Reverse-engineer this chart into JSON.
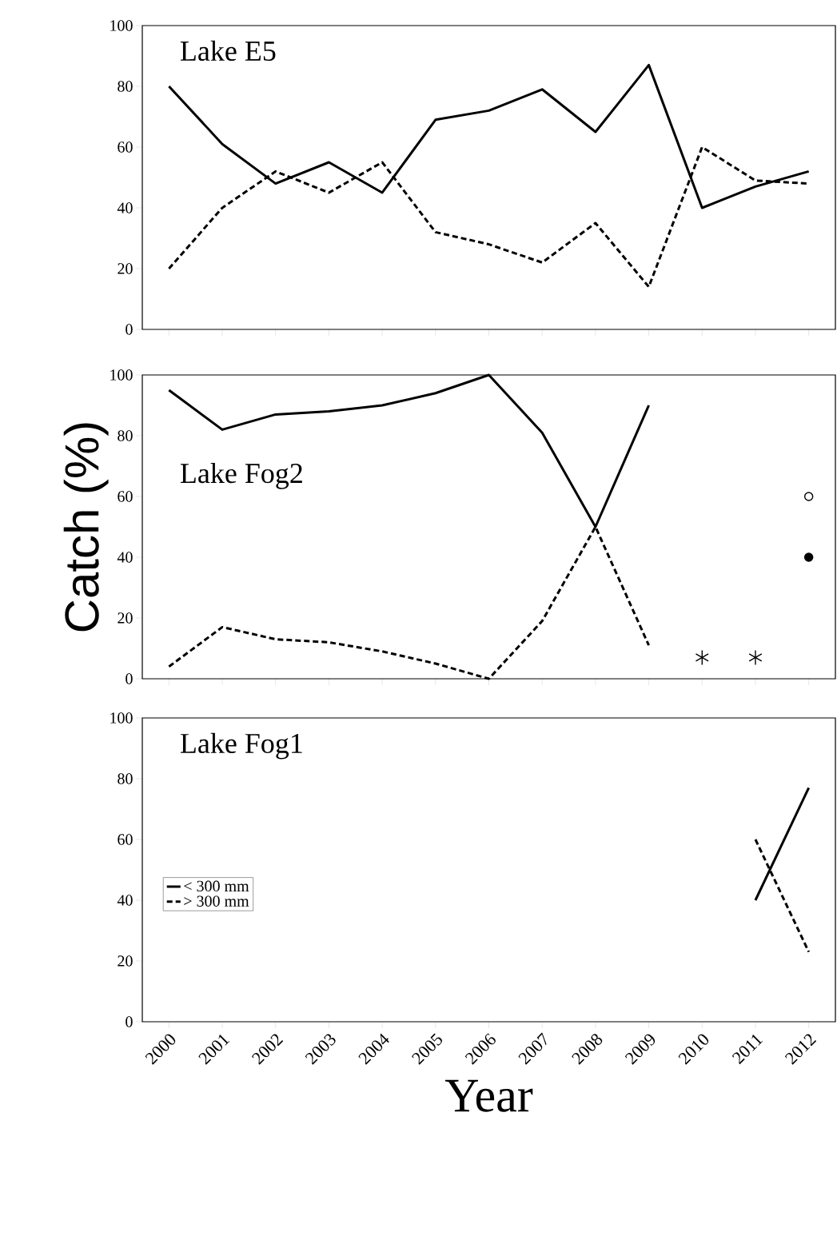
{
  "chart_data": [
    {
      "type": "line",
      "title": "Lake E5",
      "categories": [
        "2000",
        "2001",
        "2002",
        "2003",
        "2004",
        "2005",
        "2006",
        "2007",
        "2008",
        "2009",
        "2010",
        "2011",
        "2012"
      ],
      "ylim": [
        0,
        100
      ],
      "yticks": [
        0,
        20,
        40,
        60,
        80,
        100
      ],
      "tick_labels": "y",
      "grid": false,
      "legend": false,
      "series": [
        {
          "color": "#000000",
          "line_style": "solid",
          "values": [
            80,
            61,
            48,
            55,
            45,
            69,
            72,
            79,
            65,
            87,
            40,
            47,
            52
          ]
        },
        {
          "color": "#000000",
          "line_style": "dashed",
          "values": [
            20,
            40,
            52,
            45,
            55,
            32,
            28,
            22,
            35,
            14,
            60,
            49,
            48
          ]
        }
      ]
    },
    {
      "type": "line",
      "title": "Lake Fog2",
      "ylabel": "Catch (%)",
      "categories": [
        "2000",
        "2001",
        "2002",
        "2003",
        "2004",
        "2005",
        "2006",
        "2007",
        "2008",
        "2009",
        "2010",
        "2011",
        "2012"
      ],
      "ylim": [
        0,
        100
      ],
      "yticks": [
        0,
        20,
        40,
        60,
        80,
        100
      ],
      "tick_labels": "y",
      "grid": false,
      "legend": false,
      "series": [
        {
          "color": "#000000",
          "line_style": "solid",
          "values": [
            95,
            82,
            87,
            88,
            90,
            94,
            100,
            81,
            50,
            90,
            null,
            null,
            null
          ]
        },
        {
          "color": "#000000",
          "line_style": "dashed",
          "values": [
            4,
            17,
            13,
            12,
            9,
            5,
            0,
            19,
            50,
            11,
            null,
            null,
            null
          ]
        },
        {
          "type": "scatter",
          "marker": "circle",
          "color": "#ffffff",
          "values": [
            null,
            null,
            null,
            null,
            null,
            null,
            null,
            null,
            null,
            null,
            null,
            null,
            60
          ]
        },
        {
          "type": "scatter",
          "marker": "circle",
          "color": "#000000",
          "values": [
            null,
            null,
            null,
            null,
            null,
            null,
            null,
            null,
            null,
            null,
            null,
            null,
            40
          ]
        },
        {
          "type": "scatter",
          "marker": "cross",
          "color": "#000000",
          "values": [
            null,
            null,
            null,
            null,
            null,
            null,
            null,
            null,
            null,
            null,
            7,
            7,
            null
          ]
        }
      ]
    },
    {
      "type": "line",
      "title": "Lake Fog1",
      "xlabel": "Year",
      "categories": [
        "2000",
        "2001",
        "2002",
        "2003",
        "2004",
        "2005",
        "2006",
        "2007",
        "2008",
        "2009",
        "2010",
        "2011",
        "2012"
      ],
      "ylim": [
        0,
        100
      ],
      "yticks": [
        0,
        20,
        40,
        60,
        80,
        100
      ],
      "grid": false,
      "legend": "left",
      "series": [
        {
          "name": "< 300 mm",
          "color": "#000000",
          "line_style": "solid",
          "values": [
            null,
            null,
            null,
            null,
            null,
            null,
            null,
            null,
            null,
            null,
            null,
            40,
            77
          ]
        },
        {
          "name": "> 300 mm",
          "color": "#000000",
          "line_style": "dashed",
          "values": [
            null,
            null,
            null,
            null,
            null,
            null,
            null,
            null,
            null,
            null,
            null,
            60,
            23
          ]
        }
      ]
    }
  ]
}
